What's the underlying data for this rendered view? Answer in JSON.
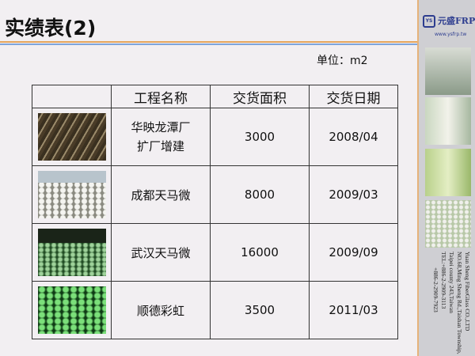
{
  "title": "实绩表(2)",
  "unit": "单位：m2",
  "logo": {
    "mark": "YS",
    "brand": "元盛FRP",
    "url": "www.ysfrp.tw"
  },
  "company": [
    "Yuan Sheng FiberGlass CO.,LTD",
    "NO.68,Ming Sheng Rd.,Taishan Township,",
    "Taipei county 243,Taiwan",
    "TEL:+886-2-2909-3113",
    "+886-2-2909-7923"
  ],
  "table": {
    "headers": [
      "",
      "工程名称",
      "交货面积",
      "交货日期"
    ],
    "rows": [
      {
        "name": "华映龙潭厂\n扩厂增建",
        "area": "3000",
        "date": "2008/04"
      },
      {
        "name": "成都天马微",
        "area": "8000",
        "date": "2009/03"
      },
      {
        "name": "武汉天马微",
        "area": "16000",
        "date": "2009/09"
      },
      {
        "name": "顺德彩虹",
        "area": "3500",
        "date": "2011/03"
      }
    ]
  },
  "colors": {
    "accent_orange": "#e6a55c",
    "accent_blue": "#7fa5dc",
    "brand": "#2d3d8f"
  }
}
